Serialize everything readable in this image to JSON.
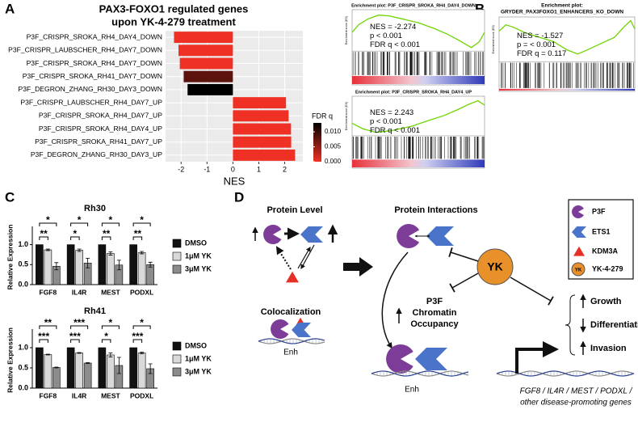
{
  "panels": {
    "a": "A",
    "b": "B",
    "c": "C",
    "d": "D"
  },
  "chart_data": [
    {
      "type": "hbar",
      "title": "PAX3-FOXO1 regulated genes",
      "subtitle": "upon YK-4-279 treatment",
      "x_label": "NES",
      "categories": [
        "P3F_CRISPR_SROKA_RH4_DAY4_DOWN",
        "P3F_CRISPR_LAUBSCHER_RH4_DAY7_DOWN",
        "P3F_CRISPR_SROKA_RH4_DAY7_DOWN",
        "P3F_CRISPR_SROKA_RH41_DAY7_DOWN",
        "P3F_DEGRON_ZHANG_RH30_DAY3_DOWN",
        "P3F_CRISPR_LAUBSCHER_RH4_DAY7_UP",
        "P3F_CRISPR_SROKA_RH4_DAY7_UP",
        "P3F_CRISPR_SROKA_RH4_DAY4_UP",
        "P3F_CRISPR_SROKA_RH41_DAY7_UP",
        "P3F_DEGRON_ZHANG_RH30_DAY3_UP"
      ],
      "values": [
        -2.274,
        -2.1,
        -2.05,
        -1.9,
        -1.75,
        2.05,
        2.15,
        2.243,
        2.25,
        2.4
      ],
      "fdr_q": [
        0,
        0,
        0,
        0.008,
        0.013,
        0,
        0,
        0,
        0,
        0
      ],
      "color_scale": {
        "title": "FDR q",
        "colors": [
          "#ee3124",
          "#000000"
        ],
        "lim": [
          0,
          0.013
        ],
        "ticks": [
          {
            "value": 0,
            "label": "0.000"
          },
          {
            "value": 0.005,
            "label": "0.005"
          },
          {
            "value": 0.01,
            "label": "0.010"
          }
        ]
      },
      "xlim": [
        -2.6,
        2.7
      ],
      "xticks": [
        -2,
        -1,
        0,
        1,
        2
      ],
      "grid": true
    },
    {
      "type": "grouped_bar",
      "title": "Rh30",
      "y_label": "Relative Expression",
      "categories": [
        "FGF8",
        "IL4R",
        "MEST",
        "PODXL"
      ],
      "series": [
        {
          "name": "DMSO",
          "color": "#111111",
          "values": [
            1,
            1,
            1,
            1
          ]
        },
        {
          "name": "1μM YK",
          "color": "#d9d9d9",
          "values": [
            0.87,
            0.86,
            0.78,
            0.8
          ],
          "errors": [
            0.02,
            0.03,
            0.04,
            0.03
          ]
        },
        {
          "name": "3μM YK",
          "color": "#8c8c8c",
          "values": [
            0.46,
            0.54,
            0.49,
            0.5
          ],
          "errors": [
            0.09,
            0.12,
            0.12,
            0.06
          ]
        }
      ],
      "significance": [
        [
          "*",
          "**"
        ],
        [
          "*",
          "*"
        ],
        [
          "*",
          "**"
        ],
        [
          "*",
          "**"
        ]
      ],
      "ylim": [
        0,
        1.7
      ],
      "yticks": [
        {
          "value": 0,
          "label": "0.0"
        },
        {
          "value": 0.5,
          "label": "0.5"
        },
        {
          "value": 1,
          "label": "1.0"
        }
      ]
    },
    {
      "type": "grouped_bar",
      "title": "Rh41",
      "y_label": "Relative Expression",
      "categories": [
        "FGF8",
        "IL4R",
        "MEST",
        "PODXL"
      ],
      "series": [
        {
          "name": "DMSO",
          "color": "#111111",
          "values": [
            1,
            1,
            1,
            1
          ]
        },
        {
          "name": "1μM YK",
          "color": "#d9d9d9",
          "values": [
            0.83,
            0.87,
            0.82,
            0.87
          ],
          "errors": [
            0.01,
            0.01,
            0.05,
            0.02
          ]
        },
        {
          "name": "3μM YK",
          "color": "#8c8c8c",
          "values": [
            0.51,
            0.62,
            0.56,
            0.48
          ],
          "errors": [
            0.01,
            0.01,
            0.2,
            0.12
          ]
        }
      ],
      "significance": [
        [
          "**",
          "***"
        ],
        [
          "***",
          "***"
        ],
        [
          "*",
          "*"
        ],
        [
          "*",
          "***"
        ]
      ],
      "ylim": [
        0,
        1.7
      ],
      "yticks": [
        {
          "value": 0,
          "label": "0.0"
        },
        {
          "value": 0.5,
          "label": "0.5"
        },
        {
          "value": 1,
          "label": "1.0"
        }
      ]
    }
  ],
  "enrichment_plots": [
    {
      "title": "Enrichment plot: P3F_CRISPR_SROKA_RH4_DAY4_DOWN",
      "y_label": "Enrichment score (ES)",
      "stats": [
        "NES = -2.274",
        "p < 0.001",
        "FDR q < 0.001"
      ]
    },
    {
      "title": "Enrichment plot: P3F_CRISPR_SROKA_RH4_DAY4_UP",
      "y_label": "Enrichment score (ES)",
      "stats": [
        "NES = 2.243",
        "p < 0.001",
        "FDR q < 0.001"
      ]
    },
    {
      "title": "Enrichment plot:",
      "subtitle": "GRYDER_PAX3FOXO1_ENHANCERS_KO_DOWN",
      "y_label": "Enrichment score (ES)",
      "stats": [
        "NES = -1.527",
        "p = < 0.001",
        "FDR q = 0.117"
      ]
    }
  ],
  "diagram": {
    "protein_level": "Protein Level",
    "protein_interactions": "Protein Interactions",
    "colocalization": "Colocalization",
    "occupancy": [
      "P3F",
      "Chromatin",
      "Occupancy"
    ],
    "enh": [
      "Enh",
      "Enh"
    ],
    "yk": "YK",
    "legend": [
      {
        "label": "P3F"
      },
      {
        "label": "ETS1"
      },
      {
        "label": "KDM3A"
      },
      {
        "label": "YK-4-279",
        "icon": "YK"
      }
    ],
    "outcomes": [
      "Growth",
      "Differentiation",
      "Invasion"
    ],
    "genes": [
      "FGF8 / IL4R / MEST / PODXL /",
      "other disease-promoting genes"
    ]
  }
}
